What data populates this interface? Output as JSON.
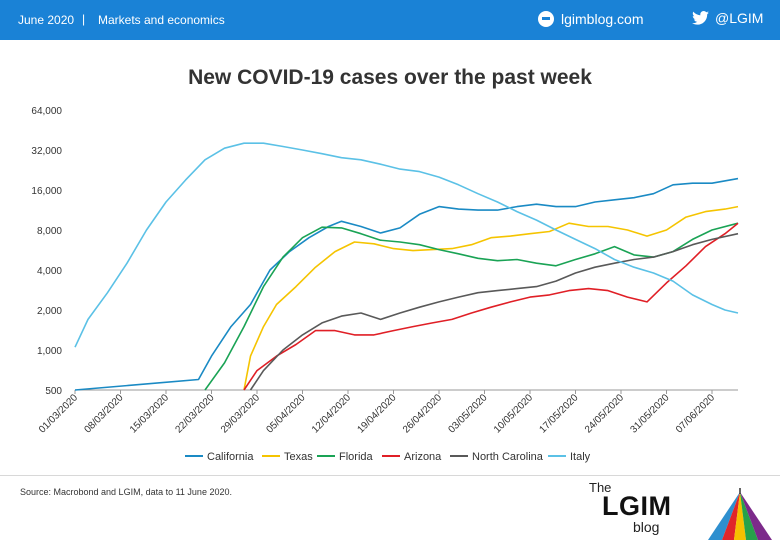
{
  "header": {
    "date": "June 2020",
    "separator": "|",
    "section": "Markets and economics",
    "site": "lgimblog.com",
    "twitter": "@LGIM",
    "bar_color": "#1a82d6"
  },
  "footer": {
    "source": "Source: Macrobond and LGIM,  data to 11 June 2020.",
    "logo_the": "The",
    "logo_lgim": "LGIM",
    "logo_blog": "blog"
  },
  "chart_data": {
    "type": "line",
    "title": "New COVID-19 cases over the past week",
    "y_scale": "log2",
    "ylim": [
      500,
      64000
    ],
    "y_ticks": [
      500,
      1000,
      2000,
      4000,
      8000,
      16000,
      32000,
      64000
    ],
    "y_tick_labels": [
      "500",
      "1,000",
      "2,000",
      "4,000",
      "8,000",
      "16,000",
      "32,000",
      "64,000"
    ],
    "x_start": "01/03/2020",
    "x_end": "11/06/2020",
    "x_ticks": [
      "01/03/2020",
      "08/03/2020",
      "15/03/2020",
      "22/03/2020",
      "29/03/2020",
      "05/04/2020",
      "12/04/2020",
      "19/04/2020",
      "26/04/2020",
      "03/05/2020",
      "10/05/2020",
      "17/05/2020",
      "24/05/2020",
      "31/05/2020",
      "07/06/2020"
    ],
    "grid": false,
    "legend_position": "bottom",
    "series": [
      {
        "name": "California",
        "color": "#1a8ac4",
        "points": [
          [
            "01/03/2020",
            500
          ],
          [
            "20/03/2020",
            600
          ],
          [
            "22/03/2020",
            900
          ],
          [
            "25/03/2020",
            1500
          ],
          [
            "28/03/2020",
            2200
          ],
          [
            "31/03/2020",
            4000
          ],
          [
            "03/04/2020",
            5500
          ],
          [
            "06/04/2020",
            7000
          ],
          [
            "09/04/2020",
            8500
          ],
          [
            "11/04/2020",
            9300
          ],
          [
            "14/04/2020",
            8500
          ],
          [
            "17/04/2020",
            7600
          ],
          [
            "20/04/2020",
            8300
          ],
          [
            "23/04/2020",
            10500
          ],
          [
            "26/04/2020",
            12000
          ],
          [
            "29/04/2020",
            11500
          ],
          [
            "02/05/2020",
            11300
          ],
          [
            "05/05/2020",
            11300
          ],
          [
            "08/05/2020",
            12000
          ],
          [
            "11/05/2020",
            12500
          ],
          [
            "14/05/2020",
            12000
          ],
          [
            "17/05/2020",
            12000
          ],
          [
            "20/05/2020",
            13000
          ],
          [
            "23/05/2020",
            13500
          ],
          [
            "26/05/2020",
            14000
          ],
          [
            "29/05/2020",
            15000
          ],
          [
            "01/06/2020",
            17500
          ],
          [
            "04/06/2020",
            18000
          ],
          [
            "07/06/2020",
            18000
          ],
          [
            "11/06/2020",
            19500
          ]
        ]
      },
      {
        "name": "Texas",
        "color": "#f5c400",
        "points": [
          [
            "27/03/2020",
            500
          ],
          [
            "28/03/2020",
            900
          ],
          [
            "30/03/2020",
            1500
          ],
          [
            "01/04/2020",
            2200
          ],
          [
            "04/04/2020",
            3000
          ],
          [
            "07/04/2020",
            4200
          ],
          [
            "10/04/2020",
            5500
          ],
          [
            "13/04/2020",
            6500
          ],
          [
            "16/04/2020",
            6300
          ],
          [
            "19/04/2020",
            5800
          ],
          [
            "22/04/2020",
            5600
          ],
          [
            "25/04/2020",
            5700
          ],
          [
            "28/04/2020",
            5800
          ],
          [
            "01/05/2020",
            6200
          ],
          [
            "04/05/2020",
            7000
          ],
          [
            "07/05/2020",
            7200
          ],
          [
            "10/05/2020",
            7500
          ],
          [
            "13/05/2020",
            7800
          ],
          [
            "16/05/2020",
            9000
          ],
          [
            "19/05/2020",
            8500
          ],
          [
            "22/05/2020",
            8500
          ],
          [
            "25/05/2020",
            8000
          ],
          [
            "28/05/2020",
            7200
          ],
          [
            "31/05/2020",
            8000
          ],
          [
            "03/06/2020",
            10000
          ],
          [
            "06/06/2020",
            11000
          ],
          [
            "09/06/2020",
            11500
          ],
          [
            "11/06/2020",
            12000
          ]
        ]
      },
      {
        "name": "Florida",
        "color": "#1aa355",
        "points": [
          [
            "21/03/2020",
            500
          ],
          [
            "24/03/2020",
            800
          ],
          [
            "27/03/2020",
            1500
          ],
          [
            "30/03/2020",
            3000
          ],
          [
            "02/04/2020",
            5000
          ],
          [
            "05/04/2020",
            7000
          ],
          [
            "08/04/2020",
            8400
          ],
          [
            "11/04/2020",
            8300
          ],
          [
            "14/04/2020",
            7500
          ],
          [
            "17/04/2020",
            6700
          ],
          [
            "20/04/2020",
            6500
          ],
          [
            "23/04/2020",
            6200
          ],
          [
            "26/04/2020",
            5700
          ],
          [
            "29/04/2020",
            5300
          ],
          [
            "02/05/2020",
            4900
          ],
          [
            "05/05/2020",
            4700
          ],
          [
            "08/05/2020",
            4800
          ],
          [
            "11/05/2020",
            4500
          ],
          [
            "14/05/2020",
            4300
          ],
          [
            "17/05/2020",
            4800
          ],
          [
            "20/05/2020",
            5300
          ],
          [
            "23/05/2020",
            6000
          ],
          [
            "26/05/2020",
            5200
          ],
          [
            "29/05/2020",
            5000
          ],
          [
            "01/06/2020",
            5500
          ],
          [
            "04/06/2020",
            6800
          ],
          [
            "07/06/2020",
            8000
          ],
          [
            "11/06/2020",
            9000
          ]
        ]
      },
      {
        "name": "Arizona",
        "color": "#e01f26",
        "points": [
          [
            "27/03/2020",
            500
          ],
          [
            "29/03/2020",
            700
          ],
          [
            "01/04/2020",
            900
          ],
          [
            "04/04/2020",
            1100
          ],
          [
            "07/04/2020",
            1400
          ],
          [
            "10/04/2020",
            1400
          ],
          [
            "13/04/2020",
            1300
          ],
          [
            "16/04/2020",
            1300
          ],
          [
            "19/04/2020",
            1400
          ],
          [
            "22/04/2020",
            1500
          ],
          [
            "25/04/2020",
            1600
          ],
          [
            "28/04/2020",
            1700
          ],
          [
            "01/05/2020",
            1900
          ],
          [
            "04/05/2020",
            2100
          ],
          [
            "07/05/2020",
            2300
          ],
          [
            "10/05/2020",
            2500
          ],
          [
            "13/05/2020",
            2600
          ],
          [
            "16/05/2020",
            2800
          ],
          [
            "19/05/2020",
            2900
          ],
          [
            "22/05/2020",
            2800
          ],
          [
            "25/05/2020",
            2500
          ],
          [
            "28/05/2020",
            2300
          ],
          [
            "31/05/2020",
            3200
          ],
          [
            "03/06/2020",
            4300
          ],
          [
            "06/06/2020",
            6000
          ],
          [
            "09/06/2020",
            7500
          ],
          [
            "11/06/2020",
            9000
          ]
        ]
      },
      {
        "name": "North Carolina",
        "color": "#595959",
        "points": [
          [
            "28/03/2020",
            500
          ],
          [
            "30/03/2020",
            700
          ],
          [
            "02/04/2020",
            1000
          ],
          [
            "05/04/2020",
            1300
          ],
          [
            "08/04/2020",
            1600
          ],
          [
            "11/04/2020",
            1800
          ],
          [
            "14/04/2020",
            1900
          ],
          [
            "17/04/2020",
            1700
          ],
          [
            "20/04/2020",
            1900
          ],
          [
            "23/04/2020",
            2100
          ],
          [
            "26/04/2020",
            2300
          ],
          [
            "29/04/2020",
            2500
          ],
          [
            "02/05/2020",
            2700
          ],
          [
            "05/05/2020",
            2800
          ],
          [
            "08/05/2020",
            2900
          ],
          [
            "11/05/2020",
            3000
          ],
          [
            "14/05/2020",
            3300
          ],
          [
            "17/05/2020",
            3800
          ],
          [
            "20/05/2020",
            4200
          ],
          [
            "23/05/2020",
            4500
          ],
          [
            "26/05/2020",
            4800
          ],
          [
            "29/05/2020",
            5000
          ],
          [
            "01/06/2020",
            5500
          ],
          [
            "04/06/2020",
            6200
          ],
          [
            "07/06/2020",
            6800
          ],
          [
            "11/06/2020",
            7500
          ]
        ]
      },
      {
        "name": "Italy",
        "color": "#5bc1e6",
        "points": [
          [
            "01/03/2020",
            1050
          ],
          [
            "03/03/2020",
            1700
          ],
          [
            "06/03/2020",
            2700
          ],
          [
            "09/03/2020",
            4500
          ],
          [
            "12/03/2020",
            8000
          ],
          [
            "15/03/2020",
            13000
          ],
          [
            "18/03/2020",
            19000
          ],
          [
            "21/03/2020",
            27000
          ],
          [
            "24/03/2020",
            33000
          ],
          [
            "27/03/2020",
            36000
          ],
          [
            "30/03/2020",
            36000
          ],
          [
            "02/04/2020",
            34000
          ],
          [
            "05/04/2020",
            32000
          ],
          [
            "08/04/2020",
            30000
          ],
          [
            "11/04/2020",
            28000
          ],
          [
            "14/04/2020",
            27000
          ],
          [
            "17/04/2020",
            25000
          ],
          [
            "20/04/2020",
            23000
          ],
          [
            "23/04/2020",
            22000
          ],
          [
            "26/04/2020",
            20000
          ],
          [
            "29/04/2020",
            17500
          ],
          [
            "02/05/2020",
            15000
          ],
          [
            "05/05/2020",
            13000
          ],
          [
            "08/05/2020",
            11000
          ],
          [
            "11/05/2020",
            9500
          ],
          [
            "14/05/2020",
            8000
          ],
          [
            "17/05/2020",
            6800
          ],
          [
            "20/05/2020",
            5800
          ],
          [
            "23/05/2020",
            4800
          ],
          [
            "26/05/2020",
            4200
          ],
          [
            "29/05/2020",
            3800
          ],
          [
            "01/06/2020",
            3300
          ],
          [
            "04/06/2020",
            2600
          ],
          [
            "07/06/2020",
            2200
          ],
          [
            "09/06/2020",
            2000
          ],
          [
            "11/06/2020",
            1900
          ]
        ]
      }
    ]
  }
}
